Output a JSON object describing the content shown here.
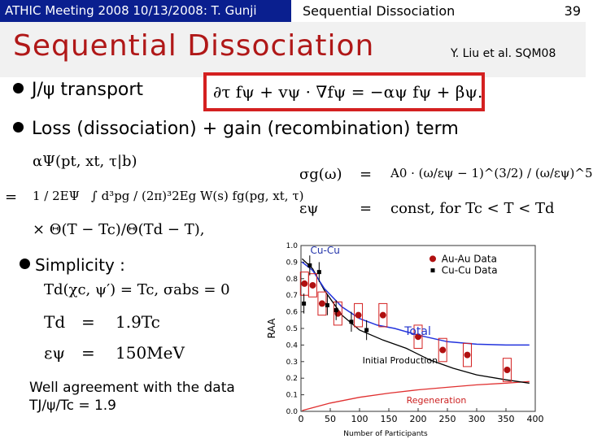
{
  "header": {
    "left": "ATHIC Meeting 2008 10/13/2008: T. Gunji",
    "center": "Sequential Dissociation",
    "page": "39"
  },
  "title": "Sequential Dissociation",
  "citation": "Y. Liu et al. SQM08",
  "bullets": {
    "transport": "J/ψ transport",
    "loss_gain": "Loss (dissociation) + gain (recombination) term",
    "simplicity": "Simplicity :"
  },
  "equations": {
    "transport": "∂τ fψ + vψ · ∇fψ = −αψ fψ + βψ.",
    "alpha_lhs": "αΨ(pt, xt, τ|b)",
    "alpha_eq": "=",
    "alpha_frac": "1 / 2EΨ",
    "alpha_int": "∫ d³pg / (2π)³2Eg W(s) fg(pg, xt, τ)",
    "alpha_theta": "× Θ(T − Tc)/Θ(Td − T),",
    "sigma_lhs": "σg(ω)",
    "sigma_eq": "=",
    "sigma_rhs": "A0 · (ω/εψ − 1)^(3/2) / (ω/εψ)^5",
    "eps_lhs": "εψ",
    "eps_eq": "=",
    "eps_rhs": "const, for Tc < T < Td",
    "td_chi": "Td(χc, ψ′) = Tc, σabs = 0",
    "td_lhs": "Td",
    "td_eq": "=",
    "td_rhs": "1.9Tc",
    "epsv_lhs": "εψ",
    "epsv_eq": "=",
    "epsv_rhs": "150MeV"
  },
  "note": {
    "line1": "Well agreement with the data",
    "line2": "TJ/ψ/Tc = 1.9"
  },
  "colors": {
    "header_bg": "#0a1f8f",
    "title": "#b01818",
    "box": "#d42020",
    "total_line": "#2233dd",
    "initial_line": "#000000",
    "regen_line": "#e03030",
    "auau_point": "#b01010",
    "cucu_point": "#000000",
    "cucu_legend_text": "#2233aa",
    "total_label": "#2233cc",
    "regen_label": "#cc2222"
  },
  "chart_data": {
    "type": "scatter",
    "xlabel": "Number of Participants",
    "ylabel": "RAA",
    "xlim": [
      0,
      400
    ],
    "ylim": [
      0,
      1.0
    ],
    "x_ticks": [
      0,
      50,
      100,
      150,
      200,
      250,
      300,
      350,
      400
    ],
    "y_ticks": [
      0,
      0.1,
      0.2,
      0.3,
      0.4,
      0.5,
      0.6,
      0.7,
      0.8,
      0.9,
      1.0
    ],
    "legend": {
      "auau": "Au-Au Data",
      "cucu": "Cu-Cu Data",
      "cucu_curve": "Cu-Cu"
    },
    "legend_position": "top-right",
    "curve_labels": {
      "total": "Total",
      "initial": "Initial Production",
      "regen": "Regeneration"
    },
    "series": [
      {
        "key": "auau",
        "values": [
          [
            6,
            0.77
          ],
          [
            20,
            0.76
          ],
          [
            36,
            0.65
          ],
          [
            63,
            0.59
          ],
          [
            98,
            0.58
          ],
          [
            140,
            0.58
          ],
          [
            200,
            0.45
          ],
          [
            242,
            0.37
          ],
          [
            284,
            0.34
          ],
          [
            352,
            0.25
          ]
        ]
      },
      {
        "key": "cucu",
        "values": [
          [
            5,
            0.65
          ],
          [
            15,
            0.88
          ],
          [
            31,
            0.84
          ],
          [
            45,
            0.64
          ],
          [
            60,
            0.61
          ],
          [
            86,
            0.54
          ],
          [
            112,
            0.49
          ]
        ]
      },
      {
        "key": "total",
        "values": [
          [
            2,
            0.9
          ],
          [
            20,
            0.85
          ],
          [
            40,
            0.74
          ],
          [
            70,
            0.63
          ],
          [
            100,
            0.56
          ],
          [
            130,
            0.52
          ],
          [
            160,
            0.5
          ],
          [
            200,
            0.46
          ],
          [
            250,
            0.42
          ],
          [
            300,
            0.405
          ],
          [
            350,
            0.4
          ],
          [
            390,
            0.4
          ]
        ]
      },
      {
        "key": "initial",
        "values": [
          [
            2,
            0.92
          ],
          [
            20,
            0.86
          ],
          [
            40,
            0.73
          ],
          [
            70,
            0.58
          ],
          [
            100,
            0.49
          ],
          [
            140,
            0.43
          ],
          [
            180,
            0.38
          ],
          [
            220,
            0.31
          ],
          [
            260,
            0.26
          ],
          [
            300,
            0.22
          ],
          [
            350,
            0.19
          ],
          [
            390,
            0.17
          ]
        ]
      },
      {
        "key": "regen",
        "values": [
          [
            2,
            0.005
          ],
          [
            50,
            0.05
          ],
          [
            100,
            0.085
          ],
          [
            150,
            0.11
          ],
          [
            200,
            0.13
          ],
          [
            250,
            0.145
          ],
          [
            300,
            0.16
          ],
          [
            350,
            0.17
          ],
          [
            390,
            0.18
          ]
        ]
      }
    ]
  }
}
